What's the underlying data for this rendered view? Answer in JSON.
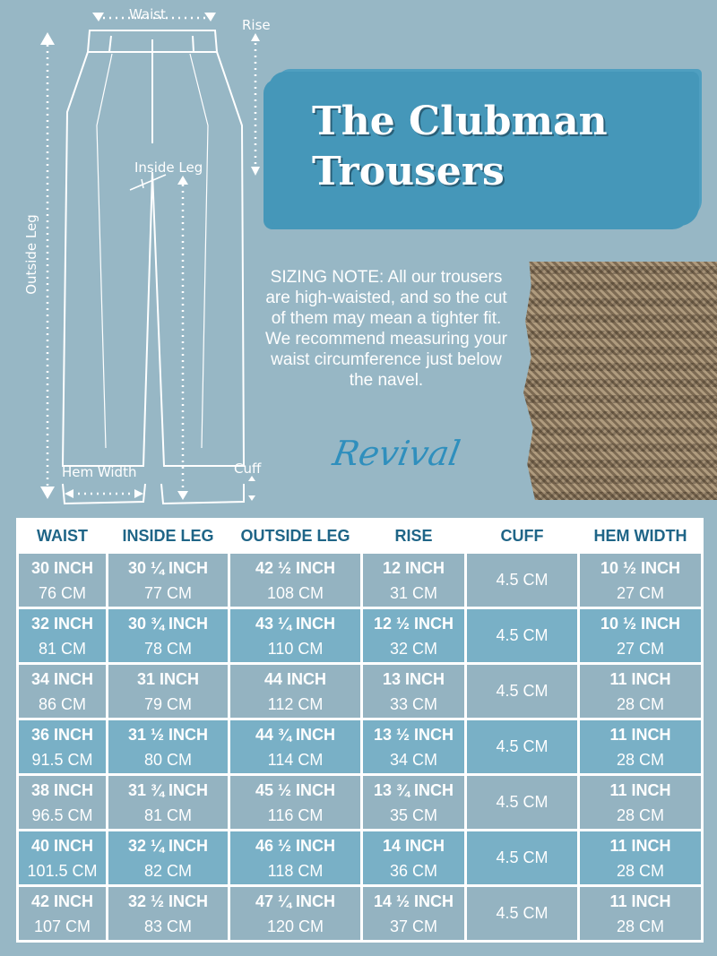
{
  "diagram": {
    "waist": "Waist",
    "rise": "Rise",
    "inside_leg": "Inside Leg",
    "outside_leg": "Outside Leg",
    "hem_width": "Hem Width",
    "cuff": "Cuff"
  },
  "title_line1": "The Clubman",
  "title_line2": "Trousers",
  "sizing_note": "SIZING NOTE: All our trousers are high-waisted, and so the cut of them may mean a tighter fit. We recommend measuring your waist circumference just below the navel.",
  "logo": "Revival",
  "colors": {
    "background": "#97b7c5",
    "banner": "#4597b9",
    "header_text": "#1f6587",
    "row_a": "#94b3c1",
    "row_b": "#79b0c6"
  },
  "table": {
    "headers": [
      "WAIST",
      "INSIDE LEG",
      "OUTSIDE LEG",
      "RISE",
      "CUFF",
      "HEM WIDTH"
    ],
    "rows": [
      [
        [
          "30 INCH",
          "76 CM"
        ],
        [
          "30 ¼ INCH",
          "77 CM"
        ],
        [
          "42 ½ INCH",
          "108 CM"
        ],
        [
          "12 INCH",
          "31 CM"
        ],
        "4.5 CM",
        [
          "10 ½ INCH",
          "27 CM"
        ]
      ],
      [
        [
          "32 INCH",
          "81 CM"
        ],
        [
          "30 ¾ INCH",
          "78 CM"
        ],
        [
          "43 ¼ INCH",
          "110 CM"
        ],
        [
          "12 ½ INCH",
          "32 CM"
        ],
        "4.5 CM",
        [
          "10 ½ INCH",
          "27 CM"
        ]
      ],
      [
        [
          "34 INCH",
          "86 CM"
        ],
        [
          "31 INCH",
          "79 CM"
        ],
        [
          "44 INCH",
          "112 CM"
        ],
        [
          "13 INCH",
          "33 CM"
        ],
        "4.5 CM",
        [
          "11 INCH",
          "28 CM"
        ]
      ],
      [
        [
          "36 INCH",
          "91.5 CM"
        ],
        [
          "31 ½ INCH",
          "80 CM"
        ],
        [
          "44 ¾ INCH",
          "114 CM"
        ],
        [
          "13 ½ INCH",
          "34 CM"
        ],
        "4.5 CM",
        [
          "11 INCH",
          "28 CM"
        ]
      ],
      [
        [
          "38 INCH",
          "96.5 CM"
        ],
        [
          "31 ¾ INCH",
          "81 CM"
        ],
        [
          "45 ½ INCH",
          "116 CM"
        ],
        [
          "13 ¾ INCH",
          "35 CM"
        ],
        "4.5 CM",
        [
          "11 INCH",
          "28 CM"
        ]
      ],
      [
        [
          "40 INCH",
          "101.5 CM"
        ],
        [
          "32 ¼ INCH",
          "82 CM"
        ],
        [
          "46 ½ INCH",
          "118 CM"
        ],
        [
          "14 INCH",
          "36 CM"
        ],
        "4.5 CM",
        [
          "11 INCH",
          "28 CM"
        ]
      ],
      [
        [
          "42 INCH",
          "107 CM"
        ],
        [
          "32 ½ INCH",
          "83 CM"
        ],
        [
          "47 ¼ INCH",
          "120 CM"
        ],
        [
          "14 ½ INCH",
          "37 CM"
        ],
        "4.5 CM",
        [
          "11 INCH",
          "28 CM"
        ]
      ]
    ]
  }
}
